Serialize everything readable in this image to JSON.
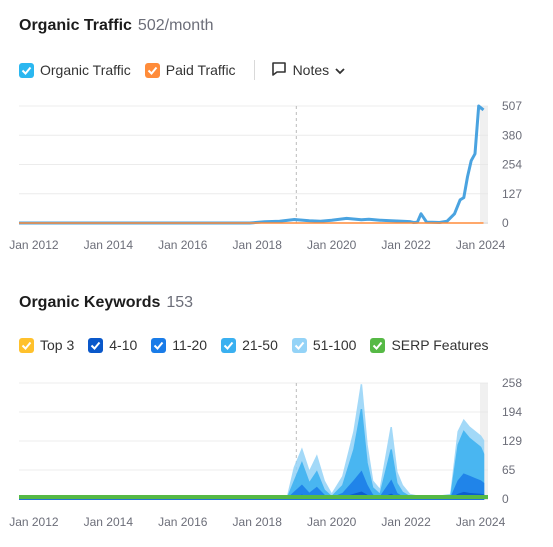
{
  "traffic": {
    "title": "Organic Traffic",
    "subtitle": "502/month",
    "legend": [
      {
        "label": "Organic Traffic",
        "color": "#2bb7f0",
        "checked": true
      },
      {
        "label": "Paid Traffic",
        "color": "#ff8c3a",
        "checked": true
      }
    ],
    "notes_label": "Notes"
  },
  "keywords": {
    "title": "Organic Keywords",
    "subtitle": "153",
    "legend": [
      {
        "label": "Top 3",
        "color": "#ffc12c",
        "checked": true
      },
      {
        "label": "4-10",
        "color": "#0a58ca",
        "checked": true
      },
      {
        "label": "11-20",
        "color": "#1a7ce8",
        "checked": true
      },
      {
        "label": "21-50",
        "color": "#3ab0f0",
        "checked": true
      },
      {
        "label": "51-100",
        "color": "#94d3f7",
        "checked": true
      },
      {
        "label": "SERP Features",
        "color": "#56b945",
        "checked": true
      }
    ]
  },
  "chart_data": [
    {
      "type": "line",
      "title": "Organic Traffic",
      "x_tick_labels": [
        "Jan 2012",
        "Jan 2014",
        "Jan 2016",
        "Jan 2018",
        "Jan 2020",
        "Jan 2022",
        "Jan 2024"
      ],
      "y_tick_labels": [
        "507",
        "380",
        "254",
        "127",
        "0"
      ],
      "ylim": [
        0,
        507
      ],
      "xlim": [
        2011.6,
        2024.2
      ],
      "series": [
        {
          "name": "Organic Traffic",
          "color": "#4aa3e0",
          "x": [
            2011.6,
            2017.8,
            2018.2,
            2018.6,
            2019.0,
            2019.4,
            2019.7,
            2020.0,
            2020.4,
            2020.8,
            2021.0,
            2021.3,
            2021.6,
            2021.9,
            2022.1,
            2022.2,
            2022.3,
            2022.4,
            2022.55,
            2022.7,
            2022.9,
            2023.1,
            2023.3,
            2023.45,
            2023.55,
            2023.65,
            2023.75,
            2023.85,
            2023.95,
            2024.0,
            2024.08
          ],
          "y": [
            0,
            0,
            5,
            8,
            15,
            10,
            8,
            12,
            20,
            14,
            16,
            12,
            10,
            8,
            6,
            2,
            3,
            40,
            4,
            3,
            2,
            8,
            40,
            100,
            110,
            200,
            270,
            300,
            507,
            500,
            490
          ]
        },
        {
          "name": "Paid Traffic",
          "color": "#ff8c3a",
          "x": [
            2011.6,
            2024.08
          ],
          "y": [
            0,
            0
          ]
        }
      ]
    },
    {
      "type": "area",
      "title": "Organic Keywords",
      "x_tick_labels": [
        "Jan 2012",
        "Jan 2014",
        "Jan 2016",
        "Jan 2018",
        "Jan 2020",
        "Jan 2022",
        "Jan 2024"
      ],
      "y_tick_labels": [
        "258",
        "194",
        "129",
        "65",
        "0"
      ],
      "ylim": [
        0,
        258
      ],
      "xlim": [
        2011.6,
        2024.2
      ],
      "x": [
        2011.6,
        2018.8,
        2019.0,
        2019.2,
        2019.4,
        2019.6,
        2019.8,
        2020.0,
        2020.3,
        2020.6,
        2020.8,
        2020.95,
        2021.1,
        2021.3,
        2021.6,
        2021.75,
        2021.9,
        2022.1,
        2022.4,
        2022.8,
        2023.2,
        2023.4,
        2023.55,
        2023.7,
        2023.85,
        2024.0,
        2024.08
      ],
      "series": [
        {
          "name": "51-100",
          "color": "#94d3f7",
          "y": [
            0,
            0,
            70,
            110,
            60,
            95,
            40,
            10,
            50,
            150,
            255,
            120,
            40,
            20,
            160,
            60,
            30,
            10,
            5,
            5,
            10,
            150,
            175,
            160,
            150,
            140,
            130
          ]
        },
        {
          "name": "21-50",
          "color": "#3ab0f0",
          "y": [
            0,
            0,
            40,
            80,
            35,
            60,
            20,
            5,
            30,
            110,
            200,
            80,
            25,
            10,
            110,
            35,
            15,
            5,
            3,
            3,
            5,
            120,
            150,
            135,
            125,
            115,
            100
          ]
        },
        {
          "name": "11-20",
          "color": "#1a7ce8",
          "y": [
            0,
            0,
            15,
            30,
            12,
            25,
            8,
            2,
            12,
            40,
            60,
            30,
            8,
            4,
            40,
            12,
            5,
            2,
            1,
            1,
            2,
            40,
            55,
            50,
            45,
            40,
            35
          ]
        },
        {
          "name": "4-10",
          "color": "#0a58ca",
          "y": [
            0,
            0,
            4,
            8,
            3,
            6,
            2,
            1,
            3,
            10,
            15,
            8,
            2,
            1,
            10,
            3,
            1,
            0,
            0,
            0,
            1,
            10,
            14,
            12,
            11,
            10,
            9
          ]
        }
      ]
    }
  ]
}
